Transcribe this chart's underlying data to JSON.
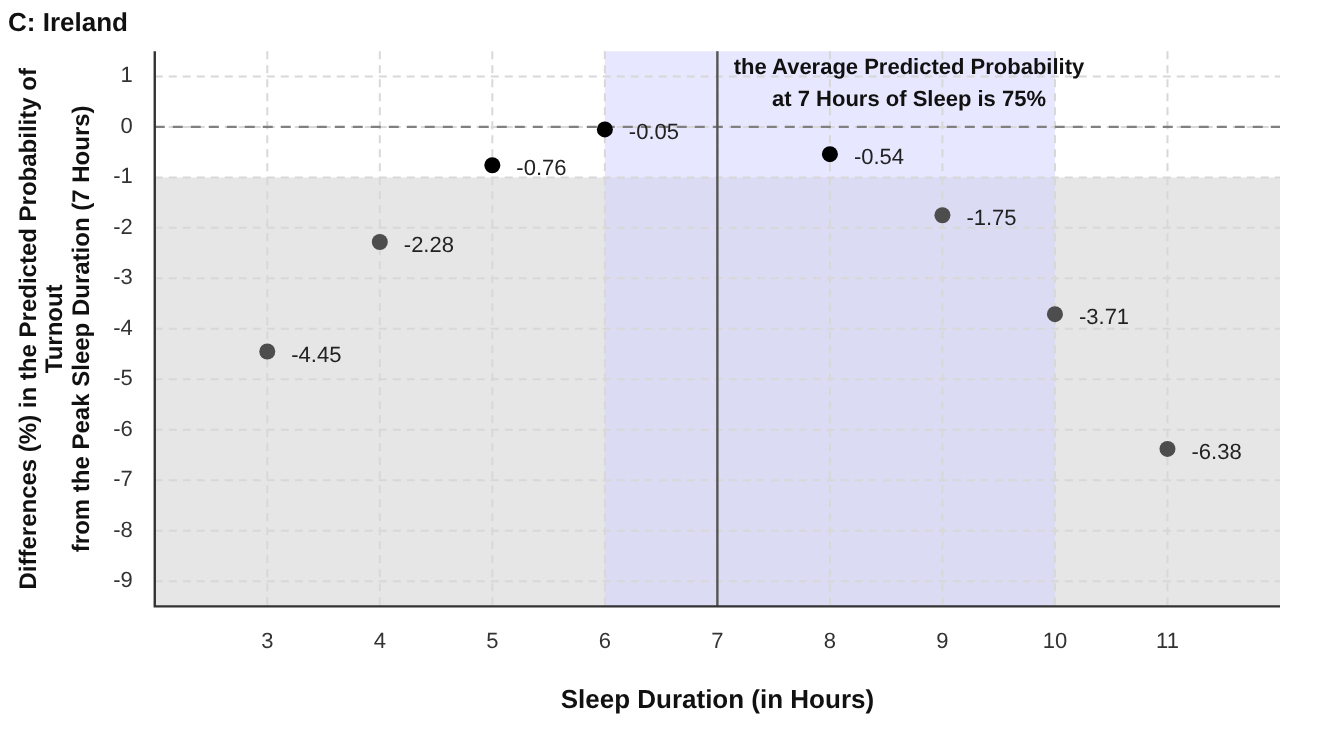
{
  "chart_data": {
    "type": "scatter",
    "title": "C: Ireland",
    "xlabel": "Sleep Duration (in Hours)",
    "ylabel": "Differences (%) in the Predicted Probability of\nTurnout\nfrom the Peak Sleep Duration (7 Hours)",
    "x": [
      3,
      4,
      5,
      6,
      8,
      9,
      10,
      11
    ],
    "values": [
      -4.45,
      -2.28,
      -0.76,
      -0.05,
      -0.54,
      -1.75,
      -3.71,
      -6.38
    ],
    "colors": [
      "#4d4d4d",
      "#4d4d4d",
      "#000000",
      "#000000",
      "#000000",
      "#4d4d4d",
      "#4d4d4d",
      "#4d4d4d"
    ],
    "xlim": [
      2,
      12
    ],
    "ylim": [
      -9.5,
      1.5
    ],
    "xticks": [
      3,
      4,
      5,
      6,
      7,
      8,
      9,
      10,
      11
    ],
    "yticks": [
      -9,
      -8,
      -7,
      -6,
      -5,
      -4,
      -3,
      -2,
      -1,
      0,
      1
    ],
    "ref_lines": [
      {
        "axis": "y",
        "value": 0,
        "line_style": "dashed",
        "color": "#808080"
      },
      {
        "axis": "x",
        "value": 7,
        "line_style": "solid",
        "color": "#555555",
        "label": "the Average Predicted Probability\nat 7 Hours of Sleep is 75%"
      }
    ],
    "bands": [
      {
        "axis": "y",
        "from": -9.5,
        "to": -1,
        "color": "#e6e6e6"
      },
      {
        "axis": "x",
        "from": 6,
        "to": 10,
        "color": "#d0d0ff"
      }
    ],
    "data_labels": true,
    "grid": true,
    "marker": "circle",
    "legend": false
  }
}
